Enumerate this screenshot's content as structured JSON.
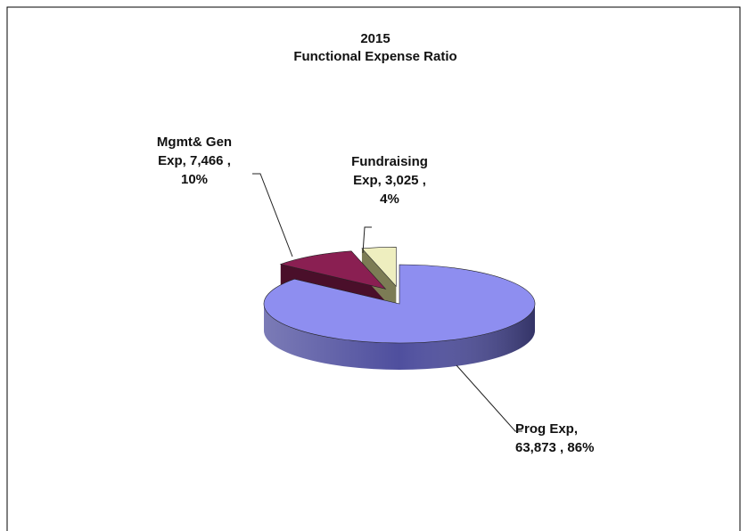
{
  "chart_data": {
    "type": "pie3d",
    "title": "2015",
    "subtitle": "Functional Expense Ratio",
    "values": [
      63873,
      7466,
      3025
    ],
    "percents": [
      86,
      10,
      4
    ],
    "value_labels": [
      [
        "Prog Exp,",
        "63,873 , 86%"
      ],
      [
        "Mgmt& Gen",
        "Exp,  7,466 ,",
        "10%"
      ],
      [
        "Fundraising",
        "Exp,  3,025 ,",
        "4%"
      ]
    ],
    "colors": [
      "#8e8ef0",
      "#8a1f52",
      "#eeeebf"
    ],
    "side_colors": [
      "#4f4f9e",
      "#4a0f2a",
      "#7c7c55"
    ]
  }
}
